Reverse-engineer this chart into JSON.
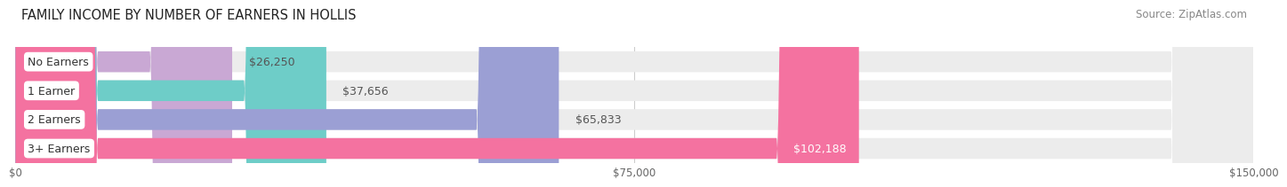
{
  "title": "FAMILY INCOME BY NUMBER OF EARNERS IN HOLLIS",
  "source": "Source: ZipAtlas.com",
  "categories": [
    "No Earners",
    "1 Earner",
    "2 Earners",
    "3+ Earners"
  ],
  "values": [
    26250,
    37656,
    65833,
    102188
  ],
  "value_labels": [
    "$26,250",
    "$37,656",
    "$65,833",
    "$102,188"
  ],
  "bar_colors": [
    "#c9a8d4",
    "#6ecdc8",
    "#9b9fd4",
    "#f472a0"
  ],
  "bar_bg_color": "#ececec",
  "xlim": [
    0,
    150000
  ],
  "xticks": [
    0,
    75000,
    150000
  ],
  "xtick_labels": [
    "$0",
    "$75,000",
    "$150,000"
  ],
  "title_fontsize": 10.5,
  "source_fontsize": 8.5,
  "label_fontsize": 9,
  "value_fontsize": 9,
  "background_color": "#ffffff",
  "bar_height": 0.72,
  "grid_color": "#cccccc",
  "value_inside_color": "#ffffff",
  "value_outside_color": "#555555",
  "label_text_color": "#333333",
  "title_color": "#222222",
  "source_color": "#888888"
}
